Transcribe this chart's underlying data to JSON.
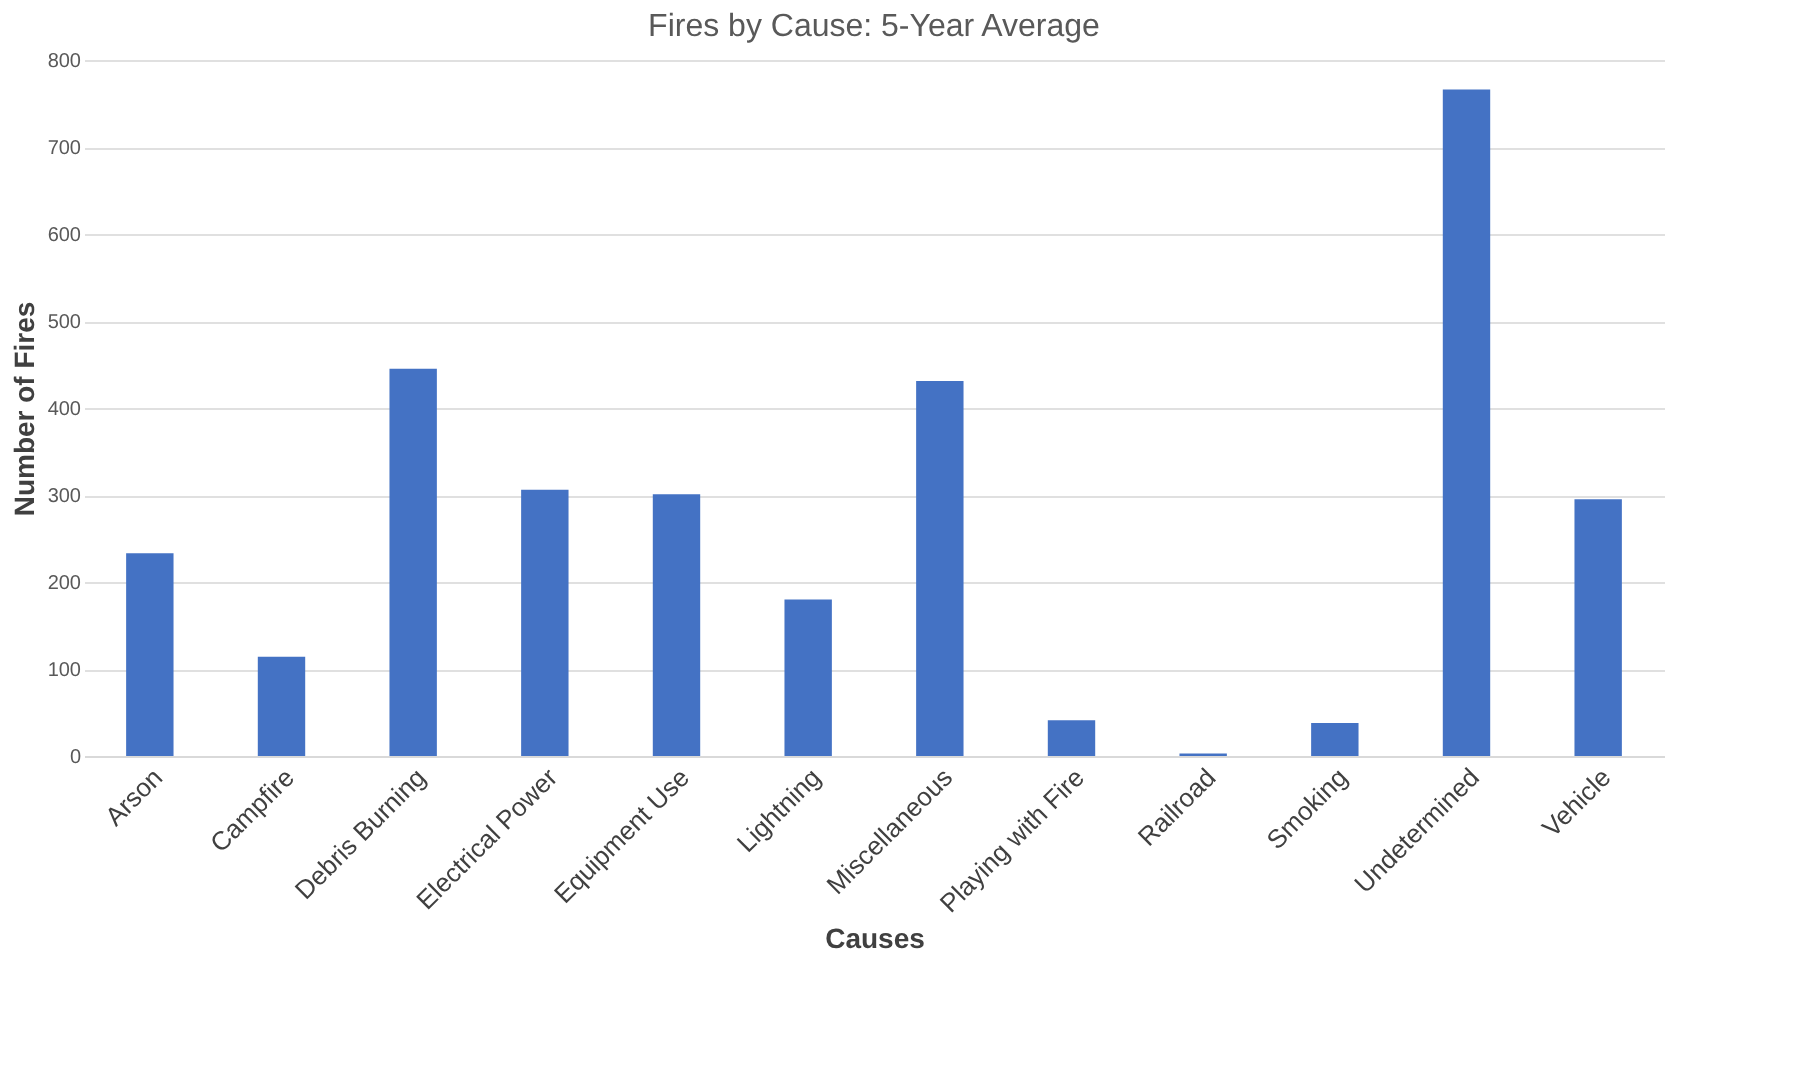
{
  "chart_data": {
    "type": "bar",
    "title": "Fires by Cause: 5-Year Average",
    "xlabel": "Causes",
    "ylabel": "Number of Fires",
    "categories": [
      "Arson",
      "Campfire",
      "Debris Burning",
      "Electrical Power",
      "Equipment Use",
      "Lightning",
      "Miscellaneous",
      "Playing with Fire",
      "Railroad",
      "Smoking",
      "Undetermined",
      "Vehicle"
    ],
    "values": [
      233,
      114,
      445,
      306,
      301,
      180,
      431,
      41,
      3,
      38,
      766,
      295
    ],
    "color": "#4472c4",
    "ylim": [
      0,
      800
    ],
    "yticks": [
      0,
      100,
      200,
      300,
      400,
      500,
      600,
      700,
      800
    ],
    "grid": "y"
  }
}
